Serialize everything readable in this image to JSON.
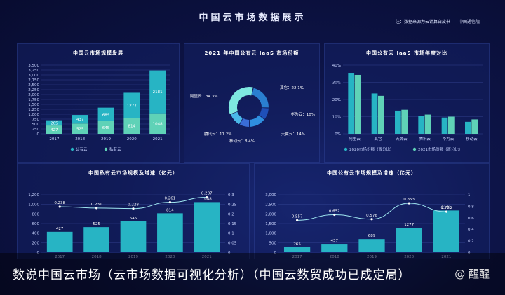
{
  "page": {
    "title": "中国云市场数据展示",
    "source": "注：数据来源为云计算白皮书——中国通信院",
    "caption": "数说中国云市场（云市场数据可视化分析）（中国云数贸成功已成定局）",
    "watermark": "@ 醒醒"
  },
  "colors": {
    "public": "#27b4c4",
    "private": "#5fd2b7",
    "line": "#9fe7f0",
    "accent": "#4fd8c8"
  },
  "chart_data": [
    {
      "type": "bar",
      "title": "中国云市场规模发展",
      "categories": [
        "2017",
        "2018",
        "2019",
        "2020",
        "2021"
      ],
      "series": [
        {
          "name": "公有云",
          "values": [
            265,
            437,
            689,
            1277,
            2181
          ]
        },
        {
          "name": "私有云",
          "values": [
            427,
            525,
            645,
            814,
            1048
          ]
        }
      ],
      "stacked": true,
      "yticks": [
        "0",
        "250",
        "500",
        "750",
        "1,000",
        "1,250",
        "1,500",
        "1,750",
        "2,000",
        "2,250",
        "2,500",
        "2,750",
        "3,000",
        "3,250",
        "3,500"
      ],
      "ylim": [
        0,
        3500
      ],
      "legend": "bottom"
    },
    {
      "type": "pie",
      "title": "2021 年中国公有云 IaaS 市场份额",
      "slices": [
        {
          "name": "阿里云",
          "label": "阿里云：34.3%",
          "value": 34.3
        },
        {
          "name": "其它",
          "label": "其它：22.1%",
          "value": 22.1
        },
        {
          "name": "华为云",
          "label": "华为云：10%",
          "value": 10
        },
        {
          "name": "天翼云",
          "label": "天翼云：14%",
          "value": 14
        },
        {
          "name": "移动云",
          "label": "移动云：8.4%",
          "value": 8.4
        },
        {
          "name": "腾讯云",
          "label": "腾讯云：11.2%",
          "value": 11.2
        }
      ],
      "donut": true
    },
    {
      "type": "bar",
      "title": "中国公有云 IaaS 市场年度对比",
      "categories": [
        "阿里云",
        "其它",
        "天翼云",
        "腾讯云",
        "华为云",
        "移动云"
      ],
      "series": [
        {
          "name": "2020市场份额（百分比）",
          "values": [
            35.5,
            23.5,
            13.5,
            10.5,
            9.5,
            7
          ]
        },
        {
          "name": "2021市场份额（百分比）",
          "values": [
            34.3,
            22.1,
            14,
            11.2,
            10,
            8.4
          ]
        }
      ],
      "yticks": [
        "0%",
        "10%",
        "20%",
        "30%",
        "40%"
      ],
      "ylim": [
        0,
        40
      ],
      "legend": "bottom"
    },
    {
      "type": "bar",
      "title": "中国私有云市场规模及增速（亿元）",
      "categories": [
        "2017",
        "2018",
        "2019",
        "2020",
        "2021"
      ],
      "values": [
        427,
        525,
        645,
        814,
        1048
      ],
      "line": [
        0.238,
        0.231,
        0.228,
        0.261,
        0.287
      ],
      "yticks": [
        "0",
        "200",
        "400",
        "600",
        "800",
        "1,000",
        "1,200"
      ],
      "ylim": [
        0,
        1200
      ],
      "y2ticks": [
        "0",
        "0.05",
        "0.1",
        "0.15",
        "0.2",
        "0.25",
        "0.3"
      ],
      "y2lim": [
        0,
        0.3
      ]
    },
    {
      "type": "bar",
      "title": "中国公有云市场规模及增速（亿元）",
      "categories": [
        "2017",
        "2018",
        "2019",
        "2020",
        "2021"
      ],
      "values": [
        265,
        437,
        689,
        1277,
        2181
      ],
      "line": [
        0.557,
        0.652,
        0.576,
        0.853,
        0.706
      ],
      "yticks": [
        "0",
        "500",
        "1,000",
        "1,500",
        "2,000",
        "2,500",
        "3,000"
      ],
      "ylim": [
        0,
        3000
      ],
      "y2ticks": [
        "0",
        "0.2",
        "0.4",
        "0.6",
        "0.8",
        "1"
      ],
      "y2lim": [
        0,
        1
      ]
    }
  ]
}
